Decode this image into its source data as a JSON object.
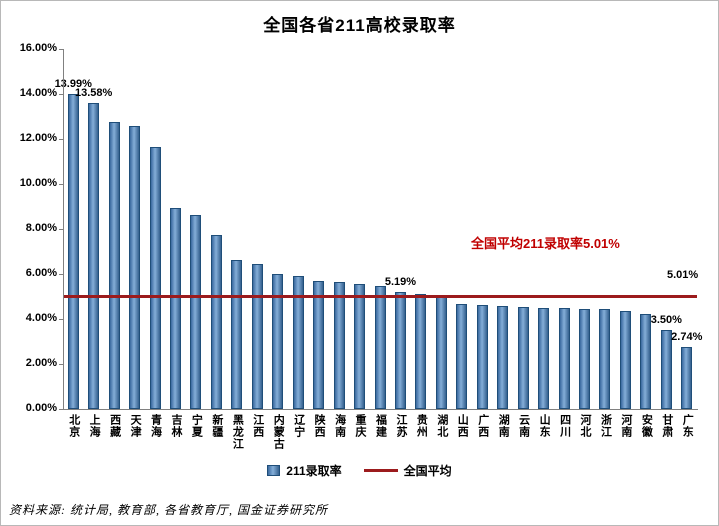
{
  "legend": {
    "bar_label": "211录取率",
    "line_label": "全国平均"
  },
  "footer": {
    "text": "资料来源: 统计局, 教育部, 各省教育厅, 国金证券研究所"
  },
  "colors": {
    "bar_fill": "#4f81bd",
    "bar_border": "#1f4e79",
    "average_line": "#9c1b1d",
    "annotation_text": "#c00000"
  },
  "chart_data": {
    "type": "bar",
    "title": "全国各省211高校录取率",
    "categories": [
      "北京",
      "上海",
      "西藏",
      "天津",
      "青海",
      "吉林",
      "宁夏",
      "新疆",
      "黑龙江",
      "江西",
      "内蒙古",
      "辽宁",
      "陕西",
      "海南",
      "重庆",
      "福建",
      "江苏",
      "贵州",
      "湖北",
      "山西",
      "广西",
      "湖南",
      "云南",
      "山东",
      "四川",
      "河北",
      "浙江",
      "河南",
      "安徽",
      "甘肃",
      "广东"
    ],
    "values": [
      13.99,
      13.58,
      12.76,
      12.6,
      11.64,
      8.93,
      8.62,
      7.73,
      6.62,
      6.44,
      6.01,
      5.9,
      5.69,
      5.64,
      5.56,
      5.47,
      5.19,
      5.1,
      5.02,
      4.67,
      4.62,
      4.58,
      4.53,
      4.49,
      4.47,
      4.44,
      4.43,
      4.35,
      4.22,
      3.5,
      2.74
    ],
    "value_labels": {
      "0": "13.99%",
      "1": "13.58%",
      "16": "5.19%",
      "29": "3.50%",
      "30": "2.74%"
    },
    "average_line": {
      "value": 5.01,
      "label": "5.01%",
      "annotation": "全国平均211录取率5.01%"
    },
    "ylim": [
      0,
      16
    ],
    "ytick_step": 2,
    "ytick_format": "0.00%",
    "grid": false,
    "legend_position": "bottom",
    "legend": [
      "211录取率",
      "全国平均"
    ]
  }
}
